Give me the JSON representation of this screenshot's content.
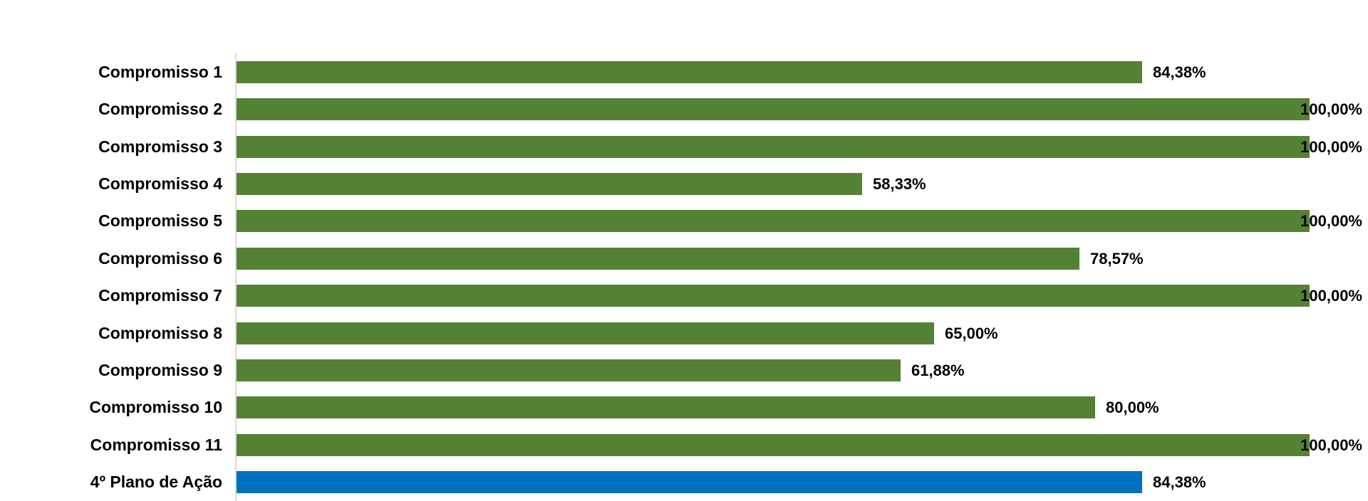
{
  "chart_data": {
    "type": "bar",
    "orientation": "horizontal",
    "title": "",
    "xlabel": "",
    "ylabel": "",
    "xlim": [
      0,
      100
    ],
    "grid": false,
    "legend": false,
    "background_color": "#ffffff",
    "axis_color": "#d9d9d9",
    "text_color": "#000000",
    "default_bar_color": "#548235",
    "highlight_bar_color": "#0070c0",
    "categories": [
      "Compromisso 1",
      "Compromisso 2",
      "Compromisso 3",
      "Compromisso 4",
      "Compromisso 5",
      "Compromisso 6",
      "Compromisso 7",
      "Compromisso 8",
      "Compromisso 9",
      "Compromisso 10",
      "Compromisso 11",
      "4º Plano de Ação"
    ],
    "values": [
      84.38,
      100.0,
      100.0,
      58.33,
      100.0,
      78.57,
      100.0,
      65.0,
      61.88,
      80.0,
      100.0,
      84.38
    ],
    "value_labels": [
      "84,38%",
      "100,00%",
      "100,00%",
      "58,33%",
      "100,00%",
      "78,57%",
      "100,00%",
      "65,00%",
      "61,88%",
      "80,00%",
      "100,00%",
      "84,38%"
    ],
    "bar_colors": [
      "#548235",
      "#548235",
      "#548235",
      "#548235",
      "#548235",
      "#548235",
      "#548235",
      "#548235",
      "#548235",
      "#548235",
      "#548235",
      "#0070c0"
    ]
  }
}
